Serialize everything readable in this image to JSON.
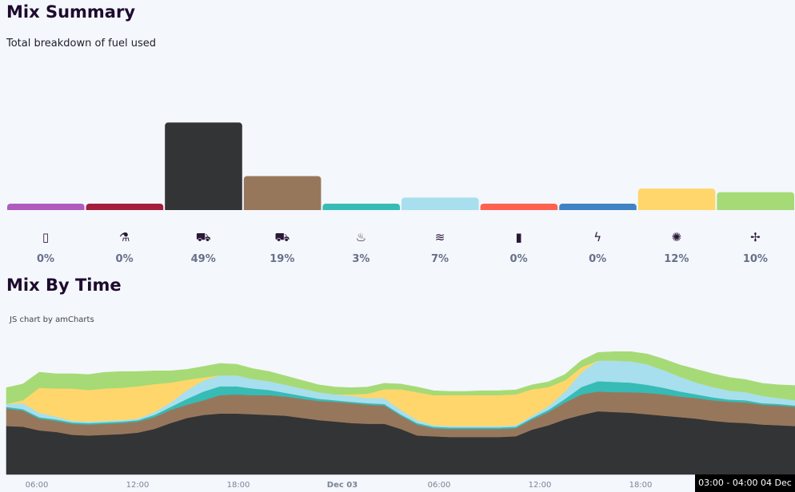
{
  "summary": {
    "title": "Mix Summary",
    "subtitle": "Total breakdown of fuel used"
  },
  "time_section": {
    "title": "Mix By Time",
    "credit": "JS chart by amCharts",
    "tooltip": "03:00 - 04:00 04 Dec"
  },
  "fuels": [
    {
      "icon": "battery-icon",
      "glyph": "▯",
      "color": "#b05cbf",
      "pct": "0%"
    },
    {
      "icon": "flask-icon",
      "glyph": "⚗",
      "color": "#a51c3c",
      "pct": "0%"
    },
    {
      "icon": "coal-cart-icon",
      "glyph": "⛟",
      "color": "#333436",
      "pct": "49%"
    },
    {
      "icon": "coal-cart-icon",
      "glyph": "⛟",
      "color": "#97775c",
      "pct": "19%"
    },
    {
      "icon": "flame-icon",
      "glyph": "♨",
      "color": "#37bbb5",
      "pct": "3%"
    },
    {
      "icon": "hydro-icon",
      "glyph": "≋",
      "color": "#a7dfee",
      "pct": "7%"
    },
    {
      "icon": "oil-barrel-icon",
      "glyph": "▮",
      "color": "#ff6350",
      "pct": "0%"
    },
    {
      "icon": "lightning-icon",
      "glyph": "ϟ",
      "color": "#3f82c4",
      "pct": "0%"
    },
    {
      "icon": "solar-icon",
      "glyph": "✺",
      "color": "#ffd66b",
      "pct": "12%"
    },
    {
      "icon": "wind-turbine-icon",
      "glyph": "✢",
      "color": "#a6da76",
      "pct": "10%"
    }
  ],
  "chart_data": [
    {
      "type": "bar",
      "categories": [
        "battery",
        "biomass",
        "coal",
        "brown coal",
        "gas",
        "hydro",
        "distillate",
        "imports",
        "solar",
        "wind"
      ],
      "values": [
        0,
        0,
        49,
        19,
        3,
        7,
        0,
        0,
        12,
        10
      ],
      "colors": [
        "#b05cbf",
        "#a51c3c",
        "#333436",
        "#97775c",
        "#37bbb5",
        "#a7dfee",
        "#ff6350",
        "#3f82c4",
        "#ffd66b",
        "#a6da76"
      ],
      "ylim": [
        0,
        55
      ],
      "axes": "hidden"
    },
    {
      "type": "area",
      "stacked": true,
      "x": [
        "03:00",
        "04:00",
        "05:00",
        "06:00",
        "07:00",
        "08:00",
        "09:00",
        "10:00",
        "11:00",
        "12:00",
        "13:00",
        "14:00",
        "15:00",
        "16:00",
        "17:00",
        "18:00",
        "19:00",
        "20:00",
        "21:00",
        "22:00",
        "23:00",
        "Dec 03",
        "01:00",
        "02:00",
        "03:00",
        "04:00",
        "05:00",
        "06:00",
        "07:00",
        "08:00",
        "09:00",
        "10:00",
        "11:00",
        "12:00",
        "13:00",
        "14:00",
        "15:00",
        "16:00",
        "17:00",
        "18:00",
        "19:00",
        "20:00",
        "21:00",
        "22:00",
        "23:00",
        "Dec 04",
        "01:00",
        "02:00",
        "03:00"
      ],
      "x_ticks": [
        "06:00",
        "12:00",
        "18:00",
        "Dec 03",
        "06:00",
        "12:00",
        "18:00"
      ],
      "series": [
        {
          "color": "#333436",
          "values": [
            66,
            65,
            60,
            58,
            54,
            53,
            54,
            55,
            57,
            62,
            70,
            77,
            81,
            83,
            83,
            82,
            81,
            80,
            77,
            74,
            72,
            70,
            69,
            69,
            62,
            53,
            52,
            51,
            51,
            51,
            51,
            52,
            61,
            67,
            75,
            81,
            86,
            85,
            84,
            82,
            80,
            78,
            76,
            73,
            71,
            70,
            68,
            67,
            66
          ]
        },
        {
          "color": "#97775c",
          "values": [
            24,
            22,
            16,
            15,
            15,
            15,
            15,
            15,
            15,
            16,
            18,
            18,
            20,
            25,
            26,
            26,
            27,
            26,
            26,
            26,
            27,
            27,
            26,
            25,
            18,
            15,
            11,
            11,
            11,
            11,
            11,
            11,
            14,
            18,
            23,
            28,
            27,
            27,
            28,
            29,
            29,
            28,
            28,
            28,
            28,
            28,
            27,
            27,
            26
          ]
        },
        {
          "color": "#37bbb5",
          "values": [
            2,
            2,
            2,
            2,
            2,
            2,
            2,
            2,
            2,
            3,
            4,
            8,
            12,
            12,
            11,
            9,
            7,
            5,
            4,
            3,
            2,
            2,
            2,
            2,
            2,
            2,
            2,
            2,
            2,
            2,
            2,
            2,
            2,
            3,
            5,
            10,
            14,
            14,
            13,
            11,
            9,
            7,
            5,
            4,
            3,
            3,
            2,
            2,
            2
          ]
        },
        {
          "color": "#a7dfee",
          "values": [
            4,
            8,
            6,
            4,
            2,
            2,
            2,
            2,
            2,
            4,
            6,
            12,
            15,
            15,
            15,
            13,
            12,
            11,
            10,
            9,
            8,
            8,
            7,
            8,
            6,
            4,
            2,
            2,
            2,
            2,
            2,
            2,
            3,
            5,
            10,
            20,
            28,
            29,
            29,
            28,
            24,
            20,
            16,
            14,
            12,
            11,
            10,
            8,
            7
          ]
        },
        {
          "color": "#ffd66b",
          "values": [
            0,
            4,
            34,
            38,
            44,
            43,
            44,
            44,
            44,
            38,
            27,
            14,
            4,
            0,
            0,
            0,
            0,
            0,
            0,
            0,
            0,
            2,
            6,
            12,
            28,
            38,
            41,
            42,
            42,
            42,
            42,
            42,
            36,
            26,
            15,
            7,
            0,
            0,
            0,
            0,
            0,
            0,
            0,
            0,
            0,
            0,
            0,
            0,
            0
          ]
        },
        {
          "color": "#a6da76",
          "values": [
            22,
            22,
            21,
            20,
            20,
            21,
            22,
            22,
            20,
            18,
            16,
            14,
            15,
            16,
            15,
            14,
            13,
            12,
            11,
            10,
            10,
            9,
            9,
            8,
            7,
            7,
            6,
            5,
            5,
            6,
            6,
            6,
            6,
            7,
            8,
            9,
            11,
            12,
            13,
            14,
            15,
            16,
            18,
            18,
            18,
            17,
            17,
            18,
            20
          ]
        }
      ],
      "ylim": [
        0,
        200
      ],
      "grid": false
    }
  ]
}
